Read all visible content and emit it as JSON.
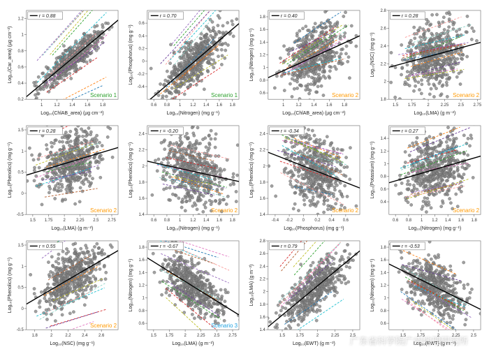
{
  "figure": {
    "cols": 4,
    "rows": 3,
    "background_color": "#ffffff",
    "axis_color": "#666666",
    "tick_color": "#666666",
    "tick_fontsize": 6,
    "label_fontsize": 7,
    "regression_line_color": "#000000",
    "regression_line_width": 1.4,
    "marker_color": "#808080",
    "marker_edge": "#5a5a5a",
    "marker_size": 2.2,
    "marker_opacity": 0.75,
    "r_box_fontsize": 7,
    "r_box_fill": "#ffffff",
    "r_box_border": "#666666",
    "scenario_fontsize": 8,
    "colored_line_palette": [
      "#1f77b4",
      "#ff7f0e",
      "#2ca02c",
      "#d62728",
      "#9467bd",
      "#e377c2",
      "#17becf",
      "#bcbd22",
      "#b15928",
      "#fb9a99",
      "#6a3d9a",
      "#8dd3c7"
    ],
    "colored_line_width": 0.9,
    "colored_line_dash": "3,2"
  },
  "panels": [
    {
      "idx": 0,
      "r_text": "r = 0.88",
      "scenario": "Scenario 1",
      "scenario_color": "#2ca02c",
      "xlabel": "Log₁₀(ChlAB_area) (µg cm⁻²)",
      "ylabel": "Log₁₀(Car_area) (µg cm⁻²)",
      "xlim": [
        0.8,
        2.0
      ],
      "ylim": [
        0.2,
        1.3
      ],
      "xticks": [
        1.0,
        1.2,
        1.4,
        1.6,
        1.8
      ],
      "yticks": [
        0.2,
        0.4,
        0.6,
        0.8,
        1.0,
        1.2
      ],
      "n_points": 520,
      "reg_slope": 0.79,
      "reg_intercept": -0.4,
      "noise": 0.08,
      "extra_lines": 12
    },
    {
      "idx": 1,
      "r_text": "r = 0.70",
      "scenario": "Scenario 1",
      "scenario_color": "#2ca02c",
      "xlabel": "Log₁₀(Nitrogen) (mg g⁻¹)",
      "ylabel": "Log₁₀(Phosphorus) (mg g⁻¹)",
      "xlim": [
        0.5,
        1.9
      ],
      "ylim": [
        -0.6,
        0.8
      ],
      "xticks": [
        0.6,
        0.8,
        1.0,
        1.2,
        1.4,
        1.6,
        1.8
      ],
      "yticks": [
        -0.4,
        -0.2,
        0.0,
        0.2,
        0.4,
        0.6
      ],
      "n_points": 520,
      "reg_slope": 0.88,
      "reg_intercept": -1.08,
      "noise": 0.18,
      "extra_lines": 12
    },
    {
      "idx": 2,
      "r_text": "r = 0.40",
      "scenario": "Scenario 2",
      "scenario_color": "#ff9900",
      "xlabel": "Log₁₀(ChlAB_area) (µg cm⁻²)",
      "ylabel": "Log₁₀(Nitrogen) (mg g⁻¹)",
      "xlim": [
        0.8,
        2.0
      ],
      "ylim": [
        0.5,
        1.9
      ],
      "xticks": [
        1.0,
        1.2,
        1.4,
        1.6,
        1.8
      ],
      "yticks": [
        0.6,
        0.8,
        1.0,
        1.2,
        1.4,
        1.6,
        1.8
      ],
      "n_points": 520,
      "reg_slope": 0.55,
      "reg_intercept": 0.4,
      "noise": 0.25,
      "extra_lines": 12
    },
    {
      "idx": 3,
      "r_text": "r = 0.28",
      "scenario": "Scenario 2",
      "scenario_color": "#ff9900",
      "xlabel": "Log₁₀(LMA) (g m⁻²)",
      "ylabel": "Log₁₀(NSC) (mg g⁻¹)",
      "xlim": [
        1.4,
        2.8
      ],
      "ylim": [
        1.8,
        2.8
      ],
      "xticks": [
        1.5,
        1.75,
        2.0,
        2.25,
        2.5,
        2.75
      ],
      "yticks": [
        1.8,
        2.0,
        2.2,
        2.4,
        2.6,
        2.8
      ],
      "n_points": 520,
      "reg_slope": 0.2,
      "reg_intercept": 1.88,
      "noise": 0.18,
      "extra_lines": 12
    },
    {
      "idx": 4,
      "r_text": "r = 0.28",
      "scenario": "Scenario 2",
      "scenario_color": "#ff9900",
      "xlabel": "Log₁₀(LMA) (g m⁻²)",
      "ylabel": "Log₁₀(Phenolics) (mg g⁻¹)",
      "xlim": [
        1.4,
        2.85
      ],
      "ylim": [
        -0.5,
        1.6
      ],
      "xticks": [
        1.5,
        1.75,
        2.0,
        2.25,
        2.5,
        2.75
      ],
      "yticks": [
        -0.5,
        0.0,
        0.5,
        1.0,
        1.5
      ],
      "n_points": 520,
      "reg_slope": 0.45,
      "reg_intercept": -0.2,
      "noise": 0.35,
      "extra_lines": 12
    },
    {
      "idx": 5,
      "r_text": "r = -0.20",
      "scenario": "Scenario 2",
      "scenario_color": "#ff9900",
      "xlabel": "Log₁₀(Nitrogen) (mg g⁻¹)",
      "ylabel": "Log₁₀(Phenolics) (mg g⁻¹)",
      "xlim": [
        0.5,
        1.9
      ],
      "ylim": [
        1.4,
        2.5
      ],
      "xticks": [
        0.6,
        0.8,
        1.0,
        1.2,
        1.4,
        1.6,
        1.8
      ],
      "yticks": [
        1.4,
        1.6,
        1.8,
        2.0,
        2.2,
        2.4
      ],
      "n_points": 520,
      "reg_slope": -0.18,
      "reg_intercept": 2.15,
      "noise": 0.22,
      "extra_lines": 12
    },
    {
      "idx": 6,
      "r_text": "r = -0.34",
      "scenario": "Scenario 2",
      "scenario_color": "#ff9900",
      "xlabel": "Log₁₀(Phosphorus) (mg g⁻¹)",
      "ylabel": "Log₁₀(Phenolics) (mg g⁻¹)",
      "xlim": [
        -0.5,
        0.8
      ],
      "ylim": [
        1.4,
        2.5
      ],
      "xticks": [
        -0.4,
        -0.2,
        0.0,
        0.2,
        0.4,
        0.6
      ],
      "yticks": [
        1.4,
        1.6,
        1.8,
        2.0,
        2.2,
        2.4
      ],
      "n_points": 520,
      "reg_slope": -0.34,
      "reg_intercept": 2.0,
      "noise": 0.22,
      "extra_lines": 12
    },
    {
      "idx": 7,
      "r_text": "r = 0.27",
      "scenario": "Scenario 2",
      "scenario_color": "#ff9900",
      "xlabel": "Log₁₀(Nitrogen) (mg g⁻¹)",
      "ylabel": "Log₁₀(Potassium) (mg g⁻¹)",
      "xlim": [
        0.5,
        1.9
      ],
      "ylim": [
        0.2,
        1.6
      ],
      "xticks": [
        0.6,
        0.8,
        1.0,
        1.2,
        1.4,
        1.6,
        1.8
      ],
      "yticks": [
        0.4,
        0.6,
        0.8,
        1.0,
        1.2,
        1.4
      ],
      "n_points": 520,
      "reg_slope": 0.3,
      "reg_intercept": 0.55,
      "noise": 0.26,
      "extra_lines": 12
    },
    {
      "idx": 8,
      "r_text": "r = 0.55",
      "scenario": "Scenario 2",
      "scenario_color": "#ff9900",
      "xlabel": "Log₁₀(NSC) (mg g⁻¹)",
      "ylabel": "Log₁₀(Phenolics) (mg g⁻¹)",
      "xlim": [
        1.7,
        2.8
      ],
      "ylim": [
        -0.5,
        1.6
      ],
      "xticks": [
        1.8,
        2.0,
        2.2,
        2.4,
        2.6
      ],
      "yticks": [
        -0.5,
        0.0,
        0.5,
        1.0,
        1.5
      ],
      "n_points": 520,
      "reg_slope": 1.15,
      "reg_intercept": -1.85,
      "noise": 0.3,
      "extra_lines": 12
    },
    {
      "idx": 9,
      "r_text": "r = -0.67",
      "scenario": "Scenario 3",
      "scenario_color": "#1fa2e0",
      "xlabel": "Log₁₀(LMA) (g m⁻²)",
      "ylabel": "Log₁₀(Nitrogen) (mg g⁻¹)",
      "xlim": [
        1.4,
        2.85
      ],
      "ylim": [
        0.5,
        1.9
      ],
      "xticks": [
        1.5,
        1.75,
        2.0,
        2.25,
        2.5,
        2.75
      ],
      "yticks": [
        0.6,
        0.8,
        1.0,
        1.2,
        1.4,
        1.6,
        1.8
      ],
      "n_points": 520,
      "reg_slope": -0.62,
      "reg_intercept": 2.5,
      "noise": 0.19,
      "extra_lines": 12
    },
    {
      "idx": 10,
      "r_text": "r = 0.79",
      "scenario": "",
      "scenario_color": "#000000",
      "xlabel": "Log₁₀(EWT) (g m⁻²)",
      "ylabel": "Log₁₀(LMA) (g m⁻²)",
      "xlim": [
        1.3,
        2.6
      ],
      "ylim": [
        1.4,
        2.8
      ],
      "xticks": [
        1.5,
        1.75,
        2.0,
        2.25,
        2.5
      ],
      "yticks": [
        1.4,
        1.6,
        1.8,
        2.0,
        2.2,
        2.4,
        2.6,
        2.8
      ],
      "n_points": 520,
      "reg_slope": 0.92,
      "reg_intercept": 0.25,
      "noise": 0.17,
      "extra_lines": 12
    },
    {
      "idx": 11,
      "r_text": "r = -0.53",
      "scenario": "",
      "scenario_color": "#000000",
      "xlabel": "Log₁₀(EWT) (g m⁻²)",
      "ylabel": "Log₁₀(Nitrogen) (mg g⁻¹)",
      "xlim": [
        1.3,
        2.6
      ],
      "ylim": [
        0.5,
        1.9
      ],
      "xticks": [
        1.5,
        1.75,
        2.0,
        2.25,
        2.5
      ],
      "yticks": [
        0.6,
        0.8,
        1.0,
        1.2,
        1.4,
        1.6,
        1.8
      ],
      "n_points": 520,
      "reg_slope": -0.55,
      "reg_intercept": 2.25,
      "noise": 0.22,
      "extra_lines": 12
    }
  ],
  "watermark": "广东省科学院广州地理研究所"
}
